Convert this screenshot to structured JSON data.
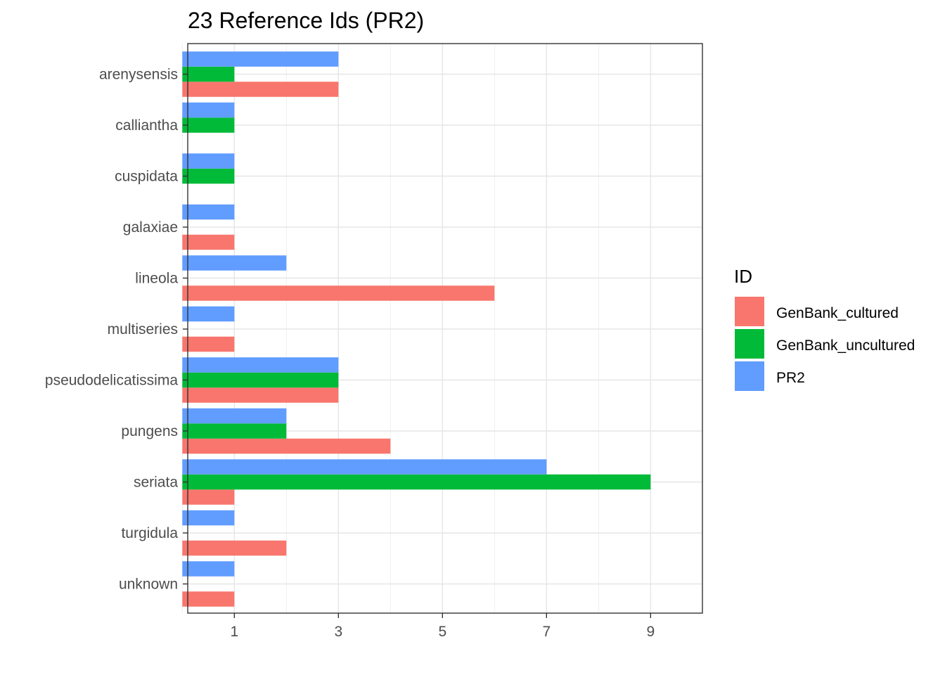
{
  "chart_data": {
    "type": "bar",
    "orientation": "horizontal",
    "title": "23 Reference Ids (PR2)",
    "xlabel": "",
    "ylabel": "",
    "xlim": [
      0,
      9.5
    ],
    "xticks": [
      1,
      3,
      5,
      7,
      9
    ],
    "grid": true,
    "legend_position": "right",
    "legend_title": "ID",
    "categories": [
      "arenysensis",
      "calliantha",
      "cuspidata",
      "galaxiae",
      "lineola",
      "multiseries",
      "pseudodelicatissima",
      "pungens",
      "seriata",
      "turgidula",
      "unknown"
    ],
    "series": [
      {
        "name": "GenBank_cultured",
        "color": "#F8766D",
        "values": [
          3,
          null,
          null,
          1,
          6,
          1,
          3,
          4,
          1,
          2,
          1
        ]
      },
      {
        "name": "GenBank_uncultured",
        "color": "#00BA38",
        "values": [
          1,
          1,
          1,
          null,
          null,
          null,
          3,
          2,
          9,
          null,
          null
        ]
      },
      {
        "name": "PR2",
        "color": "#619CFF",
        "values": [
          3,
          1,
          1,
          1,
          2,
          1,
          3,
          2,
          7,
          1,
          1
        ]
      }
    ]
  }
}
